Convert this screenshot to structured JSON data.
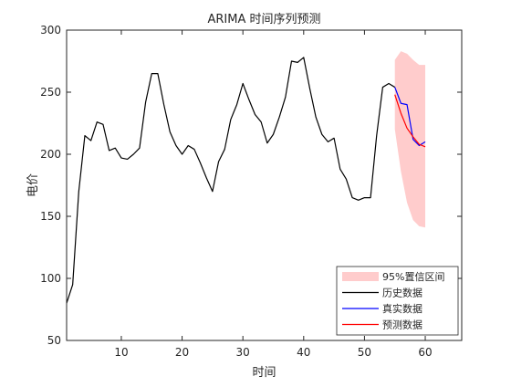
{
  "chart_data": {
    "type": "line",
    "title": "ARIMA 时间序列预测",
    "xlabel": "时间",
    "ylabel": "电价",
    "xlim": [
      1,
      66
    ],
    "ylim": [
      50,
      300
    ],
    "x_ticks": [
      10,
      20,
      30,
      40,
      50,
      60
    ],
    "y_ticks": [
      50,
      100,
      150,
      200,
      250,
      300
    ],
    "grid": false,
    "legend_position": "bottom-right",
    "legend": [
      "95%置信区间",
      "历史数据",
      "真实数据",
      "预测数据"
    ],
    "colors": {
      "confidence": "#ffcccc",
      "history": "#000000",
      "actual": "#0000ff",
      "forecast": "#ff0000"
    },
    "series": [
      {
        "name": "历史数据",
        "x": [
          1,
          2,
          3,
          4,
          5,
          6,
          7,
          8,
          9,
          10,
          11,
          12,
          13,
          14,
          15,
          16,
          17,
          18,
          19,
          20,
          21,
          22,
          23,
          24,
          25,
          26,
          27,
          28,
          29,
          30,
          31,
          32,
          33,
          34,
          35,
          36,
          37,
          38,
          39,
          40,
          41,
          42,
          43,
          44,
          45,
          46,
          47,
          48,
          49,
          50,
          51,
          52,
          53,
          54,
          55
        ],
        "values": [
          80,
          95,
          170,
          215,
          211,
          226,
          224,
          203,
          205,
          197,
          196,
          200,
          205,
          242,
          265,
          265,
          240,
          218,
          207,
          200,
          207,
          204,
          193,
          181,
          170,
          194,
          204,
          228,
          240,
          257,
          244,
          232,
          226,
          209,
          216,
          230,
          246,
          275,
          274,
          278,
          253,
          230,
          216,
          210,
          213,
          188,
          180,
          165,
          163,
          165,
          165,
          215,
          254,
          257,
          254
        ]
      },
      {
        "name": "真实数据",
        "x": [
          55,
          56,
          57,
          58,
          59,
          60
        ],
        "values": [
          254,
          241,
          240,
          212,
          207,
          210
        ]
      },
      {
        "name": "预测数据",
        "x": [
          55,
          56,
          57,
          58,
          59,
          60
        ],
        "values": [
          248,
          233,
          221,
          214,
          208,
          206
        ]
      },
      {
        "name": "95%置信区间",
        "x": [
          55,
          56,
          57,
          58,
          59,
          60
        ],
        "upper": [
          276,
          283,
          281,
          276,
          272,
          272
        ],
        "lower": [
          220,
          186,
          161,
          147,
          142,
          141
        ]
      }
    ]
  }
}
